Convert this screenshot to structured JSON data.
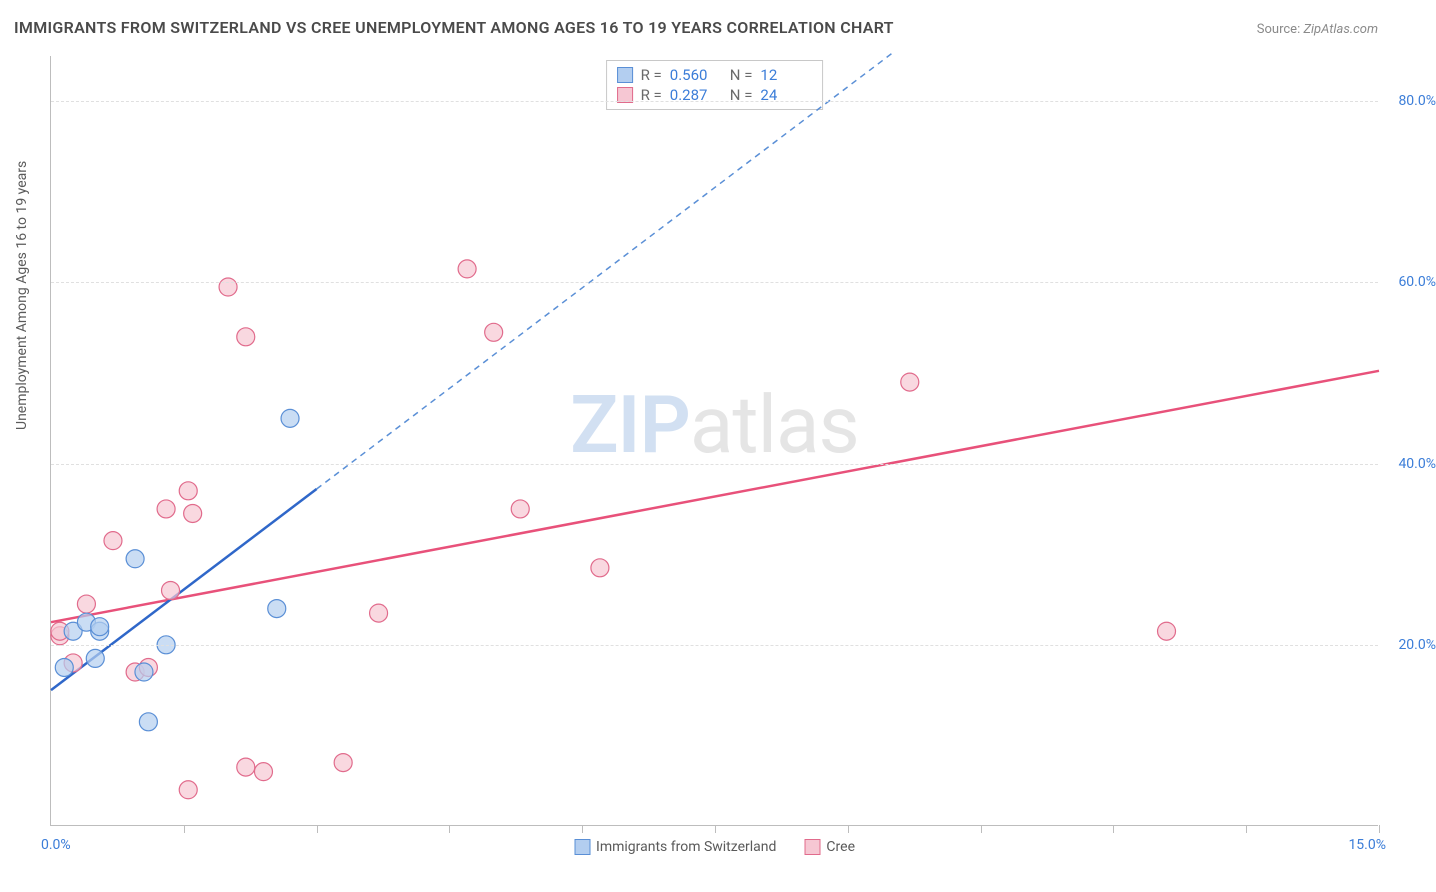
{
  "title": "IMMIGRANTS FROM SWITZERLAND VS CREE UNEMPLOYMENT AMONG AGES 16 TO 19 YEARS CORRELATION CHART",
  "source_label": "Source: ",
  "source_site": "ZipAtlas.com",
  "ylabel": "Unemployment Among Ages 16 to 19 years",
  "watermark_a": "ZIP",
  "watermark_b": "atlas",
  "chart": {
    "type": "scatter",
    "xlim": [
      0.0,
      15.0
    ],
    "ylim": [
      0.0,
      85.0
    ],
    "y_ticks": [
      20.0,
      40.0,
      60.0,
      80.0
    ],
    "y_tick_labels": [
      "20.0%",
      "40.0%",
      "60.0%",
      "80.0%"
    ],
    "x_tick_positions": [
      1.5,
      3.0,
      4.5,
      6.0,
      7.5,
      9.0,
      10.5,
      12.0,
      13.5,
      15.0
    ],
    "x_label_min": "0.0%",
    "x_label_max": "15.0%",
    "grid_color": "#e0e0e0",
    "axis_color": "#bdbdbd",
    "marker_radius": 9,
    "series": [
      {
        "name": "Immigrants from Switzerland",
        "key": "blue",
        "fill": "#b3cef0",
        "stroke": "#5a8fd6",
        "R": "0.560",
        "N": "12",
        "points": [
          [
            0.25,
            21.5
          ],
          [
            0.4,
            22.5
          ],
          [
            0.55,
            21.5
          ],
          [
            0.55,
            22.0
          ],
          [
            0.5,
            18.5
          ],
          [
            0.95,
            29.5
          ],
          [
            1.05,
            17.0
          ],
          [
            1.3,
            20.0
          ],
          [
            1.1,
            11.5
          ],
          [
            2.55,
            24.0
          ],
          [
            2.7,
            45.0
          ],
          [
            0.15,
            17.5
          ]
        ],
        "trend": {
          "solid_end_x": 3.0,
          "dash_end_x": 9.5,
          "intercept": 15.0,
          "slope": 7.4,
          "color_solid": "#2f67c9",
          "color_dash": "#5a8fd6"
        }
      },
      {
        "name": "Cree",
        "key": "pink",
        "fill": "#f6c7d3",
        "stroke": "#e16b8c",
        "R": "0.287",
        "N": "24",
        "points": [
          [
            0.1,
            21.0
          ],
          [
            0.1,
            21.5
          ],
          [
            0.25,
            18.0
          ],
          [
            0.4,
            24.5
          ],
          [
            0.7,
            31.5
          ],
          [
            0.95,
            17.0
          ],
          [
            1.1,
            17.5
          ],
          [
            1.3,
            35.0
          ],
          [
            1.35,
            26.0
          ],
          [
            1.55,
            37.0
          ],
          [
            1.6,
            34.5
          ],
          [
            1.55,
            4.0
          ],
          [
            2.0,
            59.5
          ],
          [
            2.2,
            54.0
          ],
          [
            2.2,
            6.5
          ],
          [
            2.4,
            6.0
          ],
          [
            3.3,
            7.0
          ],
          [
            3.7,
            23.5
          ],
          [
            4.7,
            61.5
          ],
          [
            5.0,
            54.5
          ],
          [
            5.3,
            35.0
          ],
          [
            6.2,
            28.5
          ],
          [
            9.7,
            49.0
          ],
          [
            12.6,
            21.5
          ]
        ],
        "trend": {
          "end_x": 15.0,
          "intercept": 22.5,
          "slope": 1.85,
          "color": "#e8517a"
        }
      }
    ]
  },
  "stats_labels": {
    "R": "R =",
    "N": "N ="
  },
  "legend_bottom": [
    {
      "swatch": "blue",
      "label": "Immigrants from Switzerland"
    },
    {
      "swatch": "pink",
      "label": "Cree"
    }
  ]
}
